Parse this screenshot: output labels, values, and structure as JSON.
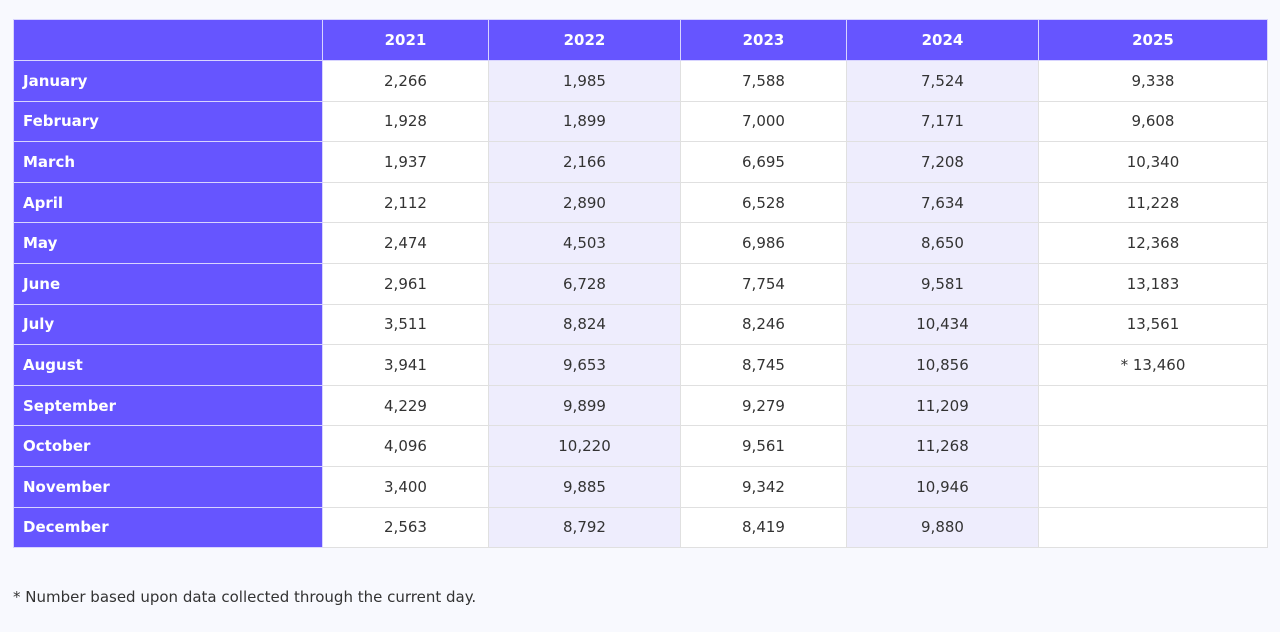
{
  "table": {
    "corner_label": "",
    "columns": [
      "2021",
      "2022",
      "2023",
      "2024",
      "2025"
    ],
    "rows": [
      {
        "month": "January",
        "values": [
          "2,266",
          "1,985",
          "7,588",
          "7,524",
          "9,338"
        ]
      },
      {
        "month": "February",
        "values": [
          "1,928",
          "1,899",
          "7,000",
          "7,171",
          "9,608"
        ]
      },
      {
        "month": "March",
        "values": [
          "1,937",
          "2,166",
          "6,695",
          "7,208",
          "10,340"
        ]
      },
      {
        "month": "April",
        "values": [
          "2,112",
          "2,890",
          "6,528",
          "7,634",
          "11,228"
        ]
      },
      {
        "month": "May",
        "values": [
          "2,474",
          "4,503",
          "6,986",
          "8,650",
          "12,368"
        ]
      },
      {
        "month": "June",
        "values": [
          "2,961",
          "6,728",
          "7,754",
          "9,581",
          "13,183"
        ]
      },
      {
        "month": "July",
        "values": [
          "3,511",
          "8,824",
          "8,246",
          "10,434",
          "13,561"
        ]
      },
      {
        "month": "August",
        "values": [
          "3,941",
          "9,653",
          "8,745",
          "10,856",
          "* 13,460"
        ]
      },
      {
        "month": "September",
        "values": [
          "4,229",
          "9,899",
          "9,279",
          "11,209",
          ""
        ]
      },
      {
        "month": "October",
        "values": [
          "4,096",
          "10,220",
          "9,561",
          "11,268",
          ""
        ]
      },
      {
        "month": "November",
        "values": [
          "3,400",
          "9,885",
          "9,342",
          "10,946",
          ""
        ]
      },
      {
        "month": "December",
        "values": [
          "2,563",
          "8,792",
          "8,419",
          "9,880",
          ""
        ]
      }
    ]
  },
  "footnote": "* Number based upon data collected through the current day.",
  "colors": {
    "header_bg": "#6655ff",
    "alt_col_bg": "#eeedfd",
    "partial_value": "#e02424",
    "page_bg": "#f8f9fe"
  }
}
